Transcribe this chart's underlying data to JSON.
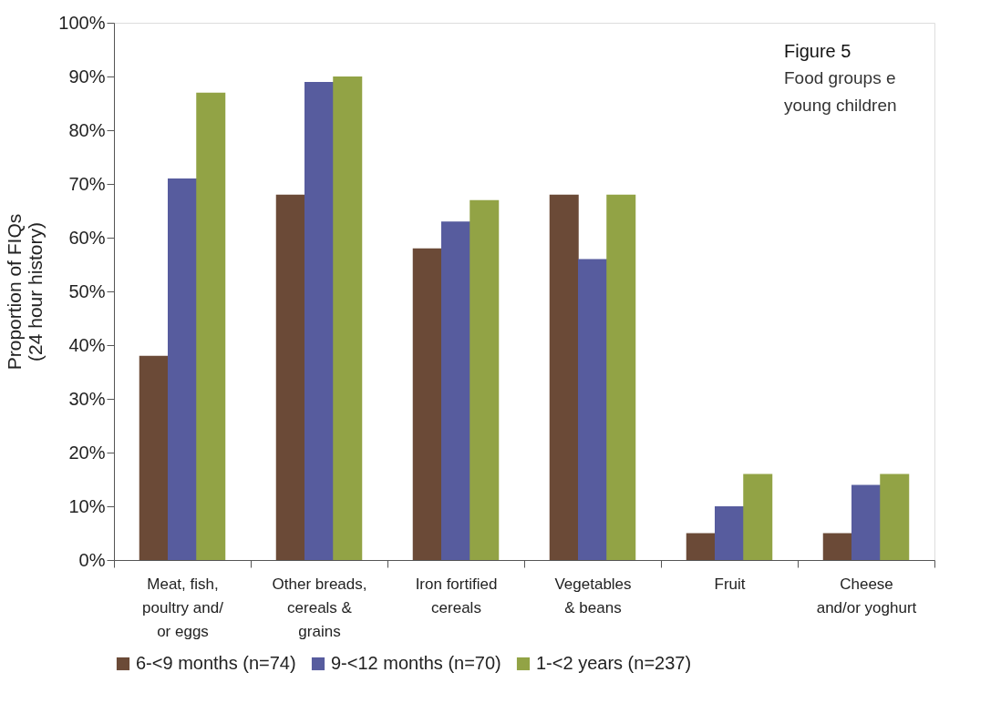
{
  "chart_data": {
    "type": "bar",
    "title": "Figure 5",
    "annotations": [
      "Food groups e",
      "young children"
    ],
    "ylabel": "Proportion of FIQs\n(24 hour history)",
    "categories": [
      "Meat, fish,\npoultry and/\nor eggs",
      "Other breads,\ncereals &\ngrains",
      "Iron fortified\ncereals",
      "Vegetables\n& beans",
      "Fruit",
      "Cheese\nand/or yoghurt"
    ],
    "series": [
      {
        "name": "6-<9 months (n=74)",
        "color": "#6b4a37",
        "values": [
          38,
          68,
          58,
          68,
          5,
          5
        ]
      },
      {
        "name": "9-<12 months (n=70)",
        "color": "#575c9e",
        "values": [
          71,
          89,
          63,
          56,
          10,
          14
        ]
      },
      {
        "name": "1-<2 years (n=237)",
        "color": "#92a345",
        "values": [
          87,
          90,
          67,
          68,
          16,
          16
        ]
      }
    ],
    "ylim": [
      0,
      100
    ],
    "yticks": [
      {
        "value": 0,
        "label": "0%"
      },
      {
        "value": 10,
        "label": "10%"
      },
      {
        "value": 20,
        "label": "20%"
      },
      {
        "value": 30,
        "label": "30%"
      },
      {
        "value": 40,
        "label": "40%"
      },
      {
        "value": 50,
        "label": "50%"
      },
      {
        "value": 60,
        "label": "60%"
      },
      {
        "value": 70,
        "label": "70%"
      },
      {
        "value": 80,
        "label": "80%"
      },
      {
        "value": 90,
        "label": "90%"
      },
      {
        "value": 100,
        "label": "100%"
      }
    ],
    "grid": false,
    "legend": "bottom"
  }
}
